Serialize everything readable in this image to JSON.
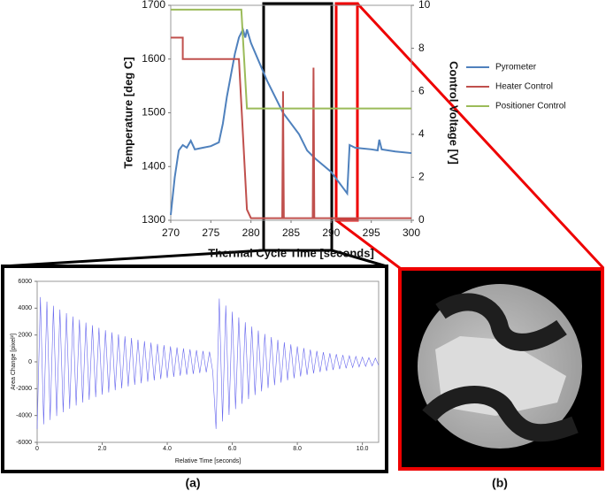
{
  "chart_data": [
    {
      "type": "line",
      "xlabel": "Thermal Cycle Time [seconds]",
      "ylabel": "Temperature [deg C]",
      "y2label": "Control Voltage [V]",
      "xlim": [
        270,
        300
      ],
      "xticks": [
        270,
        275,
        280,
        285,
        290,
        295,
        300
      ],
      "ylim": [
        1300,
        1700
      ],
      "yticks": [
        1300,
        1400,
        1500,
        1600,
        1700
      ],
      "y2lim": [
        0,
        10
      ],
      "y2ticks": [
        0,
        2,
        4,
        6,
        8,
        10
      ],
      "legend": "right",
      "series": [
        {
          "name": "Pyrometer",
          "color": "#4f81bd",
          "x": [
            270,
            270.5,
            271,
            271.5,
            272,
            272.5,
            273,
            274,
            275,
            276,
            276.5,
            277,
            277.5,
            278,
            278.5,
            279,
            279.3,
            279.5,
            280,
            282,
            284,
            286,
            287,
            288,
            290,
            291,
            291.5,
            292,
            292.3,
            293,
            295,
            295.8,
            296,
            296.3,
            298,
            300
          ],
          "values": [
            1310,
            1380,
            1430,
            1440,
            1435,
            1448,
            1432,
            1435,
            1438,
            1445,
            1480,
            1530,
            1570,
            1610,
            1640,
            1655,
            1640,
            1655,
            1630,
            1560,
            1500,
            1460,
            1430,
            1415,
            1390,
            1370,
            1360,
            1350,
            1440,
            1435,
            1432,
            1430,
            1450,
            1432,
            1428,
            1425
          ]
        },
        {
          "name": "Heater Control",
          "color": "#c0504d",
          "axis": "y2",
          "x": [
            270,
            271.5,
            271.5,
            278.5,
            279.5,
            280,
            283.9,
            284,
            284.1,
            287.7,
            287.8,
            287.9,
            300
          ],
          "values": [
            8.5,
            8.5,
            7.5,
            7.5,
            0.5,
            0.1,
            0.1,
            6.0,
            0.1,
            0.1,
            7.1,
            0.1,
            0.1
          ]
        },
        {
          "name": "Positioner Control",
          "color": "#9bbb59",
          "axis": "y2",
          "x": [
            270,
            278.8,
            279.5,
            300
          ],
          "values": [
            9.8,
            9.8,
            5.2,
            5.2
          ]
        }
      ]
    },
    {
      "type": "line",
      "xlabel": "Relative Time [seconds]",
      "ylabel": "Area Change [pixel²]",
      "xlim": [
        0,
        10.5
      ],
      "xticks": [
        0,
        {
          "value": 2,
          "label": "2.0"
        },
        {
          "value": 4,
          "label": "4.0"
        },
        {
          "value": 6,
          "label": "6.0"
        },
        {
          "value": 8,
          "label": "8.0"
        },
        {
          "value": 10,
          "label": "10.0"
        }
      ],
      "ylim": [
        -6000,
        6000
      ],
      "yticks": [
        -6000,
        -4000,
        -2000,
        0,
        2000,
        4000,
        6000
      ],
      "series": [
        {
          "color": "#6666ee",
          "x": [
            0,
            0.1,
            0.2,
            0.3,
            0.4,
            0.5,
            0.6,
            0.7,
            0.8,
            0.9,
            1.0,
            1.1,
            1.2,
            1.3,
            1.4,
            1.5,
            1.6,
            1.7,
            1.8,
            1.9,
            2.0,
            2.1,
            2.2,
            2.3,
            2.4,
            2.5,
            2.6,
            2.7,
            2.8,
            2.9,
            3.0,
            3.1,
            3.2,
            3.3,
            3.4,
            3.5,
            3.6,
            3.7,
            3.8,
            3.9,
            4.0,
            4.1,
            4.2,
            4.3,
            4.4,
            4.5,
            4.6,
            4.7,
            4.8,
            4.9,
            5.0,
            5.1,
            5.2,
            5.3,
            5.4,
            5.5,
            5.6,
            5.7,
            5.8,
            5.9,
            6.0,
            6.1,
            6.2,
            6.3,
            6.4,
            6.5,
            6.6,
            6.7,
            6.8,
            6.9,
            7.0,
            7.1,
            7.2,
            7.3,
            7.4,
            7.5,
            7.6,
            7.7,
            7.8,
            7.9,
            8.0,
            8.1,
            8.2,
            8.3,
            8.4,
            8.5,
            8.6,
            8.7,
            8.8,
            8.9,
            9.0,
            9.1,
            9.2,
            9.3,
            9.4,
            9.5,
            9.6,
            9.7,
            9.8,
            9.9,
            10.0,
            10.1,
            10.2,
            10.3,
            10.4,
            10.5
          ],
          "values": [
            -5000,
            4825,
            -4655,
            4490,
            -4335,
            4180,
            -4035,
            3895,
            -3755,
            3625,
            -3500,
            3375,
            -3255,
            3140,
            -3030,
            2925,
            -2825,
            2725,
            -2630,
            2535,
            -2450,
            2360,
            -2280,
            2200,
            -2120,
            2045,
            -1975,
            1905,
            -1840,
            1775,
            -1710,
            1650,
            -1595,
            1540,
            -1485,
            1430,
            -1380,
            1335,
            -1285,
            1240,
            -1200,
            1155,
            -1115,
            1075,
            -1040,
            1000,
            -965,
            935,
            -900,
            870,
            -840,
            810,
            -780,
            755,
            -725,
            -5000,
            4715,
            -4445,
            4195,
            -3955,
            3730,
            -3515,
            3315,
            -3130,
            2950,
            -2780,
            2625,
            -2475,
            2335,
            -2200,
            2075,
            -1955,
            1845,
            -1740,
            1640,
            -1550,
            1460,
            -1375,
            1300,
            -1225,
            1155,
            -1090,
            1025,
            -970,
            915,
            -860,
            810,
            -765,
            720,
            -680,
            640,
            -605,
            570,
            -540,
            505,
            -480,
            450,
            -425,
            400,
            -380,
            355,
            -335,
            315,
            -300,
            280,
            -265
          ]
        }
      ]
    }
  ],
  "panel_labels": [
    "(a)",
    "(b)"
  ]
}
